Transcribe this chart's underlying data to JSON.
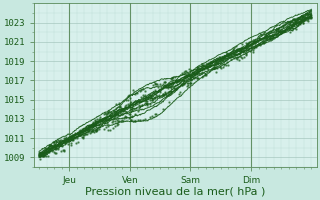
{
  "xlabel": "Pression niveau de la mer( hPa )",
  "background_color": "#c8e8e0",
  "plot_bg_color": "#d8f0ec",
  "grid_major_color": "#a8c8c0",
  "grid_minor_color": "#b8d8d0",
  "line_color": "#1a5c1a",
  "dark_line_color": "#336633",
  "ylim": [
    1008.0,
    1025.0
  ],
  "yticks": [
    1009,
    1011,
    1013,
    1015,
    1017,
    1019,
    1021,
    1023
  ],
  "day_labels": [
    "Jeu",
    "Ven",
    "Sam",
    "Dim"
  ],
  "xlabel_fontsize": 8,
  "tick_fontsize": 6.5,
  "line_width": 0.7,
  "marker_size": 1.5
}
